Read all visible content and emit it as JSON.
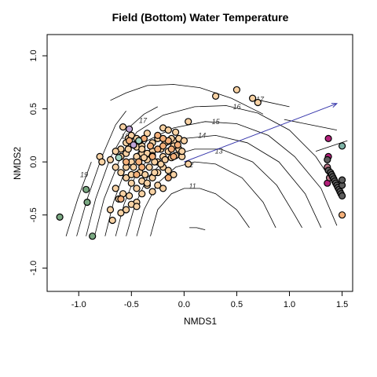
{
  "chart_data": {
    "type": "scatter",
    "title": "Field (Bottom) Water Temperature",
    "xlabel": "NMDS1",
    "ylabel": "NMDS2",
    "xlim": [
      -1.3,
      1.6
    ],
    "ylim": [
      -1.22,
      1.2
    ],
    "xticks": [
      "-1.0",
      "-0.5",
      "0.0",
      "0.5",
      "1.0",
      "1.5"
    ],
    "xtick_values": [
      -1.0,
      -0.5,
      0.0,
      0.5,
      1.0,
      1.5
    ],
    "yticks": [
      "-1.0",
      "-0.5",
      "0.0",
      "0.5",
      "1.0"
    ],
    "ytick_values": [
      -1.0,
      -0.5,
      0.0,
      0.5,
      1.0
    ],
    "grid": false,
    "legend": "none",
    "vector": {
      "from": [
        0.0,
        0.0
      ],
      "to": [
        1.45,
        0.55
      ],
      "color": "#3333aa"
    },
    "contour_labels": [
      "11",
      "12",
      "13",
      "14",
      "15",
      "16",
      "17",
      "17",
      "18",
      "19"
    ],
    "contour_label_positions": [
      [
        0.08,
        -0.23
      ],
      [
        0.05,
        -0.03
      ],
      [
        0.33,
        0.1
      ],
      [
        0.17,
        0.25
      ],
      [
        0.3,
        0.38
      ],
      [
        0.5,
        0.52
      ],
      [
        0.72,
        0.59
      ],
      [
        -0.39,
        0.39
      ],
      [
        -0.56,
        0.24
      ],
      [
        -0.95,
        -0.12
      ]
    ],
    "contours": [
      [
        [
          0.05,
          -0.62
        ],
        [
          0.12,
          -0.62
        ],
        [
          0.2,
          -0.64
        ]
      ],
      [
        [
          -0.32,
          -0.7
        ],
        [
          -0.25,
          -0.45
        ],
        [
          -0.12,
          -0.3
        ],
        [
          0.0,
          -0.25
        ],
        [
          0.15,
          -0.25
        ],
        [
          0.3,
          -0.3
        ],
        [
          0.5,
          -0.45
        ],
        [
          0.62,
          -0.62
        ]
      ],
      [
        [
          -0.45,
          -0.7
        ],
        [
          -0.38,
          -0.45
        ],
        [
          -0.25,
          -0.2
        ],
        [
          -0.08,
          -0.05
        ],
        [
          0.1,
          0.0
        ],
        [
          0.3,
          -0.02
        ],
        [
          0.55,
          -0.15
        ],
        [
          0.75,
          -0.38
        ],
        [
          0.87,
          -0.62
        ]
      ],
      [
        [
          -0.55,
          -0.7
        ],
        [
          -0.47,
          -0.42
        ],
        [
          -0.35,
          -0.15
        ],
        [
          -0.15,
          0.05
        ],
        [
          0.1,
          0.12
        ],
        [
          0.35,
          0.12
        ],
        [
          0.65,
          0.0
        ],
        [
          0.88,
          -0.22
        ],
        [
          1.05,
          -0.5
        ],
        [
          1.12,
          -0.62
        ]
      ],
      [
        [
          -0.65,
          -0.7
        ],
        [
          -0.57,
          -0.4
        ],
        [
          -0.45,
          -0.1
        ],
        [
          -0.25,
          0.12
        ],
        [
          0.0,
          0.22
        ],
        [
          0.3,
          0.25
        ],
        [
          0.6,
          0.18
        ],
        [
          0.9,
          0.0
        ],
        [
          1.15,
          -0.3
        ],
        [
          1.3,
          -0.62
        ]
      ],
      [
        [
          -0.75,
          -0.7
        ],
        [
          -0.67,
          -0.38
        ],
        [
          -0.55,
          -0.05
        ],
        [
          -0.35,
          0.2
        ],
        [
          -0.1,
          0.32
        ],
        [
          0.2,
          0.38
        ],
        [
          0.5,
          0.36
        ],
        [
          0.8,
          0.25
        ],
        [
          1.05,
          0.05
        ],
        [
          1.3,
          -0.25
        ],
        [
          1.45,
          -0.6
        ]
      ],
      [
        [
          -0.85,
          -0.7
        ],
        [
          -0.76,
          -0.35
        ],
        [
          -0.62,
          0.0
        ],
        [
          -0.45,
          0.28
        ],
        [
          -0.2,
          0.44
        ],
        [
          0.1,
          0.52
        ],
        [
          0.4,
          0.53
        ],
        [
          0.7,
          0.46
        ],
        [
          1.0,
          0.3
        ],
        [
          1.25,
          0.05
        ],
        [
          1.45,
          -0.25
        ]
      ],
      [
        [
          -0.93,
          -0.7
        ],
        [
          -0.84,
          -0.35
        ],
        [
          -0.7,
          0.04
        ],
        [
          -0.55,
          0.3
        ],
        [
          -0.38,
          0.45
        ],
        [
          -0.25,
          0.52
        ]
      ],
      [
        [
          -0.7,
          0.58
        ],
        [
          -0.55,
          0.65
        ],
        [
          -0.35,
          0.72
        ],
        [
          -0.1,
          0.73
        ],
        [
          0.15,
          0.7
        ],
        [
          0.45,
          0.6
        ],
        [
          0.75,
          0.45
        ]
      ],
      [
        [
          -1.02,
          -0.7
        ],
        [
          -0.92,
          -0.35
        ],
        [
          -0.78,
          0.05
        ],
        [
          -0.65,
          0.35
        ],
        [
          -0.55,
          0.48
        ]
      ],
      [
        [
          -1.12,
          -0.7
        ],
        [
          -1.01,
          -0.35
        ],
        [
          -0.88,
          0.0
        ]
      ],
      [
        [
          0.72,
          0.58
        ],
        [
          1.0,
          0.52
        ]
      ],
      [
        [
          0.95,
          0.4
        ],
        [
          1.2,
          0.35
        ],
        [
          1.45,
          0.3
        ]
      ],
      [
        [
          1.25,
          0.1
        ],
        [
          1.4,
          0.15
        ],
        [
          1.55,
          0.2
        ]
      ]
    ],
    "series": [
      {
        "color": "#f8d2a4",
        "points": [
          [
            -0.58,
            0.33
          ],
          [
            -0.53,
            0.22
          ],
          [
            -0.45,
            0.14
          ],
          [
            -0.4,
            0.15
          ],
          [
            -0.35,
            0.27
          ],
          [
            -0.3,
            0.18
          ],
          [
            -0.25,
            0.22
          ],
          [
            -0.2,
            0.32
          ],
          [
            -0.15,
            0.3
          ],
          [
            -0.1,
            0.2
          ],
          [
            -0.05,
            0.22
          ],
          [
            0.0,
            0.2
          ],
          [
            0.04,
            0.38
          ],
          [
            0.3,
            0.62
          ],
          [
            0.5,
            0.68
          ],
          [
            0.65,
            0.6
          ],
          [
            0.7,
            0.56
          ],
          [
            -0.55,
            0.08
          ],
          [
            -0.5,
            0.0
          ],
          [
            -0.48,
            -0.05
          ],
          [
            -0.45,
            0.05
          ],
          [
            -0.4,
            0.08
          ],
          [
            -0.35,
            0.02
          ],
          [
            -0.3,
            0.1
          ],
          [
            -0.25,
            0.0
          ],
          [
            -0.2,
            0.05
          ],
          [
            -0.15,
            0.1
          ],
          [
            -0.1,
            0.15
          ],
          [
            -0.05,
            0.12
          ],
          [
            -0.02,
            0.05
          ],
          [
            -0.6,
            -0.1
          ],
          [
            -0.55,
            -0.15
          ],
          [
            -0.5,
            -0.2
          ],
          [
            -0.45,
            -0.25
          ],
          [
            -0.4,
            -0.18
          ],
          [
            -0.35,
            -0.22
          ],
          [
            -0.3,
            -0.15
          ],
          [
            -0.25,
            -0.1
          ],
          [
            -0.2,
            -0.05
          ],
          [
            -0.15,
            -0.08
          ],
          [
            -0.1,
            -0.12
          ],
          [
            -0.65,
            -0.25
          ],
          [
            -0.62,
            -0.35
          ],
          [
            -0.58,
            -0.3
          ],
          [
            -0.52,
            -0.32
          ],
          [
            -0.45,
            -0.38
          ],
          [
            -0.4,
            -0.3
          ],
          [
            -0.35,
            -0.2
          ],
          [
            -0.3,
            -0.28
          ],
          [
            -0.25,
            -0.22
          ],
          [
            -0.2,
            -0.25
          ],
          [
            -0.7,
            -0.45
          ],
          [
            -0.68,
            -0.55
          ],
          [
            -0.6,
            -0.48
          ],
          [
            -0.55,
            -0.45
          ],
          [
            -0.5,
            -0.4
          ],
          [
            -0.45,
            -0.42
          ],
          [
            -0.8,
            0.05
          ],
          [
            -0.78,
            0.0
          ],
          [
            -0.7,
            0.02
          ],
          [
            -0.65,
            -0.05
          ],
          [
            -0.6,
            0.12
          ],
          [
            -0.55,
            0.18
          ],
          [
            -0.5,
            0.25
          ],
          [
            -0.45,
            0.22
          ],
          [
            -0.4,
            0.12
          ],
          [
            -0.35,
            0.08
          ],
          [
            -0.3,
            0.06
          ],
          [
            -0.28,
            0.0
          ],
          [
            -0.22,
            -0.02
          ],
          [
            -0.18,
            0.02
          ],
          [
            -0.12,
            0.04
          ],
          [
            -0.08,
            0.06
          ],
          [
            -0.02,
            0.1
          ],
          [
            0.04,
            -0.02
          ],
          [
            -0.65,
            0.1
          ],
          [
            -0.6,
            0.05
          ],
          [
            -0.53,
            0.12
          ],
          [
            -0.48,
            0.16
          ],
          [
            -0.42,
            0.2
          ],
          [
            -0.38,
            0.04
          ],
          [
            -0.33,
            -0.05
          ],
          [
            -0.28,
            -0.1
          ],
          [
            -0.22,
            0.12
          ],
          [
            -0.18,
            0.18
          ],
          [
            -0.12,
            0.22
          ],
          [
            -0.08,
            0.28
          ],
          [
            -0.55,
            -0.05
          ],
          [
            -0.5,
            -0.12
          ],
          [
            -0.42,
            -0.1
          ],
          [
            -0.37,
            -0.12
          ]
        ]
      },
      {
        "color": "#f4b07a",
        "points": [
          [
            -0.3,
            0.05
          ],
          [
            -0.25,
            0.12
          ],
          [
            -0.2,
            0.15
          ],
          [
            -0.15,
            0.2
          ],
          [
            -0.1,
            0.05
          ],
          [
            -0.45,
            -0.12
          ],
          [
            -0.4,
            -0.05
          ],
          [
            -0.52,
            0.2
          ],
          [
            -0.38,
            0.22
          ],
          [
            -0.15,
            -0.15
          ],
          [
            -0.6,
            -0.35
          ],
          [
            -0.55,
            0.0
          ],
          [
            -0.25,
            0.25
          ],
          [
            -0.2,
            0.22
          ],
          [
            -0.32,
            0.15
          ],
          [
            -0.43,
            0.0
          ],
          [
            -0.12,
            0.12
          ],
          [
            -0.06,
            0.16
          ],
          [
            1.5,
            -0.5
          ]
        ]
      },
      {
        "color": "#a3d6c3",
        "points": [
          [
            -0.62,
            0.04
          ],
          [
            -0.43,
            0.2
          ]
        ]
      },
      {
        "color": "#7aa882",
        "points": [
          [
            -1.18,
            -0.52
          ],
          [
            -0.93,
            -0.26
          ],
          [
            -0.87,
            -0.7
          ],
          [
            -0.92,
            -0.38
          ]
        ]
      },
      {
        "color": "#c0a6d8",
        "points": [
          [
            -0.52,
            0.31
          ],
          [
            -0.48,
            0.16
          ]
        ]
      },
      {
        "color": "#b3217b",
        "points": [
          [
            1.37,
            0.22
          ],
          [
            1.36,
            -0.2
          ],
          [
            1.37,
            0.05
          ]
        ]
      },
      {
        "color": "#bb7788",
        "points": [
          [
            1.38,
            -0.15
          ],
          [
            1.36,
            -0.05
          ]
        ]
      },
      {
        "color": "#5e5e5e",
        "points": [
          [
            1.36,
            0.02
          ],
          [
            1.37,
            -0.08
          ],
          [
            1.39,
            -0.1
          ],
          [
            1.4,
            -0.12
          ],
          [
            1.41,
            -0.14
          ],
          [
            1.42,
            -0.16
          ],
          [
            1.43,
            -0.18
          ],
          [
            1.44,
            -0.2
          ],
          [
            1.45,
            -0.22
          ],
          [
            1.46,
            -0.24
          ],
          [
            1.47,
            -0.26
          ],
          [
            1.48,
            -0.28
          ],
          [
            1.49,
            -0.3
          ],
          [
            1.5,
            -0.32
          ],
          [
            1.5,
            -0.22
          ],
          [
            1.5,
            -0.17
          ]
        ]
      },
      {
        "color": "#7fb3a6",
        "points": [
          [
            1.5,
            0.15
          ]
        ]
      }
    ]
  }
}
